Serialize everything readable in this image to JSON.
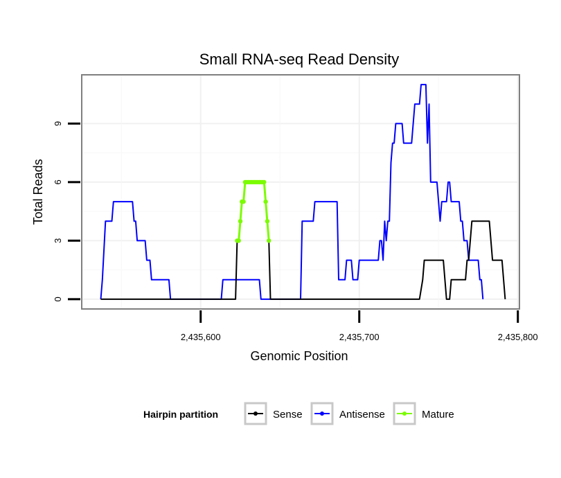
{
  "chart_data": {
    "type": "line",
    "title": "Small RNA-seq Read Density",
    "xlabel": "Genomic Position",
    "ylabel": "Total Reads",
    "xlim": [
      2435525,
      2435801
    ],
    "ylim": [
      -0.5,
      11.5
    ],
    "x_ticks": [
      2435600,
      2435700,
      2435800
    ],
    "x_tick_labels": [
      "2,435,600",
      "2,435,700",
      "2,435,800"
    ],
    "y_ticks": [
      0,
      3,
      6,
      9
    ],
    "y_tick_labels": [
      "0",
      "3",
      "6",
      "9"
    ],
    "grid": true,
    "legend": {
      "title": "Hairpin partition",
      "position": "bottom",
      "entries": [
        "Sense",
        "Antisense",
        "Mature"
      ]
    },
    "series": [
      {
        "name": "Sense",
        "color": "#000000",
        "markers": false,
        "points": [
          [
            2435537,
            0
          ],
          [
            2435622,
            0
          ],
          [
            2435623,
            3
          ],
          [
            2435624,
            3
          ],
          [
            2435625,
            4
          ],
          [
            2435626,
            5
          ],
          [
            2435627,
            5
          ],
          [
            2435628,
            6
          ],
          [
            2435640,
            6
          ],
          [
            2435641,
            5
          ],
          [
            2435642,
            4
          ],
          [
            2435643,
            3
          ],
          [
            2435644,
            0
          ],
          [
            2435738,
            0
          ],
          [
            2435740,
            1
          ],
          [
            2435741,
            2
          ],
          [
            2435753,
            2
          ],
          [
            2435754,
            1
          ],
          [
            2435755,
            0
          ],
          [
            2435757,
            0
          ],
          [
            2435758,
            1
          ],
          [
            2435767,
            1
          ],
          [
            2435768,
            2
          ],
          [
            2435769,
            2
          ],
          [
            2435770,
            3
          ],
          [
            2435771,
            4
          ],
          [
            2435782,
            4
          ],
          [
            2435783,
            3
          ],
          [
            2435784,
            2
          ],
          [
            2435790,
            2
          ],
          [
            2435791,
            1
          ],
          [
            2435792,
            0
          ]
        ]
      },
      {
        "name": "Antisense",
        "color": "#0000ff",
        "markers": false,
        "points": [
          [
            2435537,
            0
          ],
          [
            2435538,
            1
          ],
          [
            2435540,
            4
          ],
          [
            2435544,
            4
          ],
          [
            2435545,
            5
          ],
          [
            2435557,
            5
          ],
          [
            2435558,
            4
          ],
          [
            2435559,
            4
          ],
          [
            2435560,
            3
          ],
          [
            2435565,
            3
          ],
          [
            2435566,
            2
          ],
          [
            2435568,
            2
          ],
          [
            2435569,
            1
          ],
          [
            2435580,
            1
          ],
          [
            2435581,
            0
          ],
          [
            2435613,
            0
          ],
          [
            2435614,
            1
          ],
          [
            2435637,
            1
          ],
          [
            2435638,
            0
          ],
          [
            2435663,
            0
          ],
          [
            2435664,
            4
          ],
          [
            2435671,
            4
          ],
          [
            2435672,
            5
          ],
          [
            2435686,
            5
          ],
          [
            2435687,
            1
          ],
          [
            2435691,
            1
          ],
          [
            2435692,
            2
          ],
          [
            2435695,
            2
          ],
          [
            2435696,
            1
          ],
          [
            2435699,
            1
          ],
          [
            2435700,
            2
          ],
          [
            2435712,
            2
          ],
          [
            2435713,
            3
          ],
          [
            2435714,
            3
          ],
          [
            2435715,
            2
          ],
          [
            2435716,
            4
          ],
          [
            2435717,
            3
          ],
          [
            2435718,
            4
          ],
          [
            2435719,
            4
          ],
          [
            2435720,
            7
          ],
          [
            2435721,
            8
          ],
          [
            2435722,
            8
          ],
          [
            2435723,
            9
          ],
          [
            2435727,
            9
          ],
          [
            2435728,
            8
          ],
          [
            2435733,
            8
          ],
          [
            2435734,
            9
          ],
          [
            2435735,
            10
          ],
          [
            2435738,
            10
          ],
          [
            2435739,
            11
          ],
          [
            2435742,
            11
          ],
          [
            2435743,
            8
          ],
          [
            2435744,
            10
          ],
          [
            2435745,
            6
          ],
          [
            2435749,
            6
          ],
          [
            2435750,
            5
          ],
          [
            2435751,
            4
          ],
          [
            2435752,
            5
          ],
          [
            2435755,
            5
          ],
          [
            2435756,
            6
          ],
          [
            2435757,
            6
          ],
          [
            2435758,
            5
          ],
          [
            2435763,
            5
          ],
          [
            2435764,
            4
          ],
          [
            2435765,
            4
          ],
          [
            2435766,
            3
          ],
          [
            2435768,
            3
          ],
          [
            2435769,
            2
          ],
          [
            2435775,
            2
          ],
          [
            2435776,
            1
          ],
          [
            2435777,
            1
          ],
          [
            2435778,
            0
          ]
        ]
      },
      {
        "name": "Mature",
        "color": "#7cfc00",
        "markers": true,
        "points": [
          [
            2435623,
            3
          ],
          [
            2435624,
            3
          ],
          [
            2435625,
            4
          ],
          [
            2435626,
            5
          ],
          [
            2435627,
            5
          ],
          [
            2435628,
            6
          ],
          [
            2435629,
            6
          ],
          [
            2435630,
            6
          ],
          [
            2435631,
            6
          ],
          [
            2435632,
            6
          ],
          [
            2435633,
            6
          ],
          [
            2435634,
            6
          ],
          [
            2435635,
            6
          ],
          [
            2435636,
            6
          ],
          [
            2435637,
            6
          ],
          [
            2435638,
            6
          ],
          [
            2435639,
            6
          ],
          [
            2435640,
            6
          ],
          [
            2435641,
            5
          ],
          [
            2435642,
            4
          ],
          [
            2435643,
            3
          ]
        ]
      }
    ]
  }
}
